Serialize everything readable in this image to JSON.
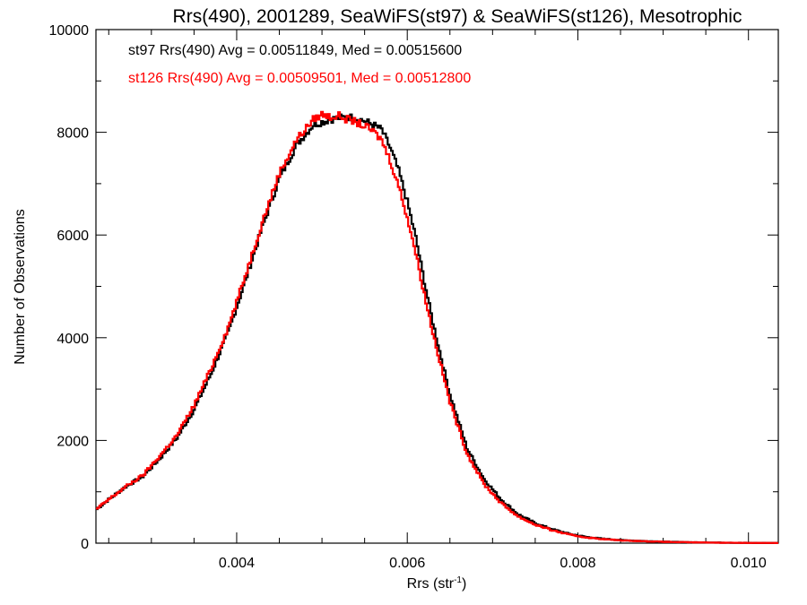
{
  "chart_data": {
    "type": "line",
    "title": "Rrs(490), 2001289, SeaWiFS(st97) & SeaWiFS(st126), Mesotrophic",
    "xlabel_main": "Rrs (str",
    "xlabel_sup": "-1",
    "xlabel_close": ")",
    "ylabel": "Number of Observations",
    "xlim": [
      0.00235,
      0.01035
    ],
    "ylim": [
      0,
      10000
    ],
    "x_ticks": [
      0.004,
      0.006,
      0.008,
      0.01
    ],
    "x_tick_labels": [
      "0.004",
      "0.006",
      "0.008",
      "0.010"
    ],
    "y_ticks": [
      0,
      2000,
      4000,
      6000,
      8000,
      10000
    ],
    "y_tick_labels": [
      "0",
      "2000",
      "4000",
      "6000",
      "8000",
      "10000"
    ],
    "step_style": "histogram",
    "grid": false,
    "legend_position": "top-left",
    "x": [
      0.00235,
      0.0025,
      0.0027,
      0.0029,
      0.0031,
      0.0033,
      0.0035,
      0.0037,
      0.0039,
      0.0041,
      0.0043,
      0.0045,
      0.0047,
      0.0048,
      0.0049,
      0.005,
      0.0051,
      0.0052,
      0.0053,
      0.0054,
      0.0055,
      0.0056,
      0.0057,
      0.0058,
      0.0059,
      0.006,
      0.0061,
      0.0062,
      0.0063,
      0.0065,
      0.0067,
      0.0069,
      0.0071,
      0.0073,
      0.0075,
      0.0077,
      0.0079,
      0.0081,
      0.0083,
      0.0085,
      0.0088,
      0.0091,
      0.0094,
      0.0097,
      0.01,
      0.01035
    ],
    "series": [
      {
        "name": "st97",
        "color": "#000000",
        "legend": "st97 Rrs(490) Avg = 0.00511849, Med = 0.00515600",
        "values": [
          650,
          850,
          1100,
          1300,
          1650,
          2050,
          2600,
          3300,
          4100,
          5100,
          6150,
          7100,
          7750,
          7950,
          8150,
          8200,
          8250,
          8280,
          8300,
          8280,
          8220,
          8150,
          8050,
          7700,
          7250,
          6650,
          5950,
          5100,
          4300,
          2900,
          1850,
          1250,
          850,
          560,
          390,
          270,
          180,
          120,
          85,
          60,
          40,
          25,
          15,
          10,
          6,
          4
        ]
      },
      {
        "name": "st126",
        "color": "#ff0000",
        "legend": "st126 Rrs(490) Avg = 0.00509501, Med = 0.00512800",
        "values": [
          650,
          850,
          1100,
          1320,
          1700,
          2100,
          2680,
          3400,
          4200,
          5200,
          6250,
          7200,
          7850,
          8050,
          8250,
          8350,
          8300,
          8320,
          8250,
          8200,
          8120,
          8020,
          7850,
          7450,
          6950,
          6350,
          5650,
          4850,
          4100,
          2750,
          1750,
          1150,
          780,
          520,
          360,
          250,
          165,
          110,
          78,
          55,
          36,
          22,
          14,
          9,
          5,
          3
        ]
      }
    ]
  }
}
